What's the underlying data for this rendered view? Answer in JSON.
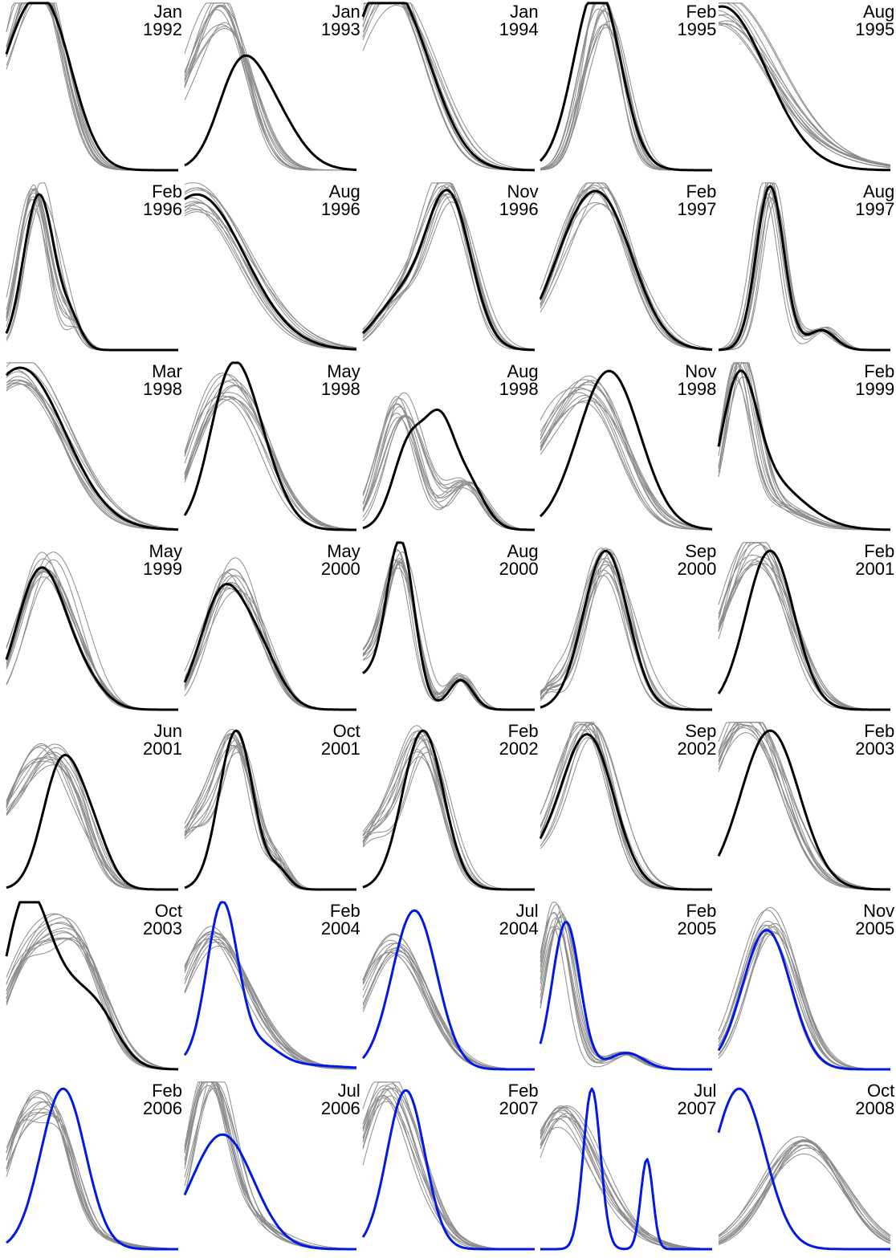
{
  "chart_data": {
    "type": "line",
    "layout": "small-multiples grid, 5 columns x 7 rows",
    "axes": "none shown",
    "grid": false,
    "colors": {
      "ensemble": "#8c8c8c",
      "observed": "#000000",
      "forecast": "#0019e6"
    },
    "panels": [
      {
        "month": "Jan",
        "year": "1992",
        "main": "#000000",
        "curves": [
          [
            0.25,
            0.15,
            0.85
          ],
          [
            -0.02,
            0.12,
            0.35
          ],
          [
            0.12,
            0.12,
            0.25
          ]
        ],
        "ensemble": [
          [
            0.23,
            0.14,
            0.93
          ],
          [
            -0.02,
            0.12,
            0.35
          ],
          [
            0.12,
            0.12,
            0.25
          ]
        ]
      },
      {
        "month": "Jan",
        "year": "1993",
        "main": "#000000",
        "curves": [
          [
            0.3,
            0.12,
            0.35
          ],
          [
            0.45,
            0.17,
            0.45
          ]
        ],
        "ensemble": [
          [
            0.24,
            0.15,
            0.9
          ],
          [
            -0.02,
            0.12,
            0.25
          ],
          [
            0.1,
            0.12,
            0.1
          ]
        ]
      },
      {
        "month": "Jan",
        "year": "1994",
        "main": "#000000",
        "curves": [
          [
            0.22,
            0.2,
            0.9
          ],
          [
            0.02,
            0.15,
            0.45
          ]
        ],
        "ensemble": [
          [
            0.23,
            0.2,
            0.92
          ],
          [
            0.02,
            0.15,
            0.45
          ]
        ]
      },
      {
        "month": "Feb",
        "year": "1995",
        "main": "#000000",
        "curves": [
          [
            0.28,
            0.12,
            0.12
          ],
          [
            0.33,
            0.14,
            0.72
          ],
          [
            0.35,
            0.12,
            0.3
          ]
        ],
        "ensemble": [
          [
            0.38,
            0.11,
            0.97
          ],
          [
            0.25,
            0.08,
            0.15
          ]
        ]
      },
      {
        "month": "Aug",
        "year": "1995",
        "main": "#000000",
        "curves": [
          [
            0.02,
            0.26,
            1.0
          ]
        ],
        "ensemble": [
          [
            0.0,
            0.28,
            0.9
          ],
          [
            0.35,
            0.35,
            0.15
          ]
        ]
      },
      {
        "month": "Feb",
        "year": "1996",
        "main": "#000000",
        "curves": [
          [
            0.19,
            0.09,
            0.95
          ],
          [
            0.38,
            0.06,
            0.15
          ]
        ],
        "ensemble": [
          [
            0.18,
            0.09,
            0.98
          ],
          [
            0.38,
            0.06,
            0.15
          ]
        ]
      },
      {
        "month": "Aug",
        "year": "1996",
        "main": "#000000",
        "curves": [
          [
            0.07,
            0.28,
            0.95
          ]
        ],
        "ensemble": [
          [
            0.06,
            0.29,
            0.95
          ]
        ]
      },
      {
        "month": "Nov",
        "year": "1996",
        "main": "#000000",
        "curves": [
          [
            0.22,
            0.15,
            0.3
          ],
          [
            0.5,
            0.13,
            0.92
          ]
        ],
        "ensemble": [
          [
            0.5,
            0.13,
            0.95
          ],
          [
            0.22,
            0.15,
            0.3
          ]
        ]
      },
      {
        "month": "Feb",
        "year": "1997",
        "main": "#000000",
        "curves": [
          [
            0.35,
            0.19,
            0.9
          ],
          [
            0.12,
            0.15,
            0.2
          ]
        ],
        "ensemble": [
          [
            0.35,
            0.19,
            0.92
          ],
          [
            0.12,
            0.15,
            0.2
          ]
        ]
      },
      {
        "month": "Aug",
        "year": "1997",
        "main": "#000000",
        "curves": [
          [
            0.3,
            0.08,
            1.0
          ],
          [
            0.6,
            0.08,
            0.12
          ]
        ],
        "ensemble": [
          [
            0.3,
            0.08,
            1.0
          ],
          [
            0.6,
            0.08,
            0.13
          ]
        ]
      },
      {
        "month": "Mar",
        "year": "1998",
        "main": "#000000",
        "curves": [
          [
            0.08,
            0.26,
            0.99
          ]
        ],
        "ensemble": [
          [
            0.08,
            0.26,
            0.99
          ]
        ]
      },
      {
        "month": "May",
        "year": "1998",
        "main": "#000000",
        "curves": [
          [
            0.25,
            0.12,
            0.7
          ],
          [
            0.4,
            0.14,
            0.5
          ]
        ],
        "ensemble": [
          [
            0.3,
            0.19,
            0.8
          ],
          [
            0.1,
            0.12,
            0.2
          ]
        ]
      },
      {
        "month": "Aug",
        "year": "1998",
        "main": "#000000",
        "curves": [
          [
            0.28,
            0.1,
            0.55
          ],
          [
            0.45,
            0.08,
            0.5
          ],
          [
            0.6,
            0.1,
            0.3
          ]
        ],
        "ensemble": [
          [
            0.22,
            0.12,
            0.78
          ],
          [
            0.6,
            0.1,
            0.28
          ]
        ]
      },
      {
        "month": "Nov",
        "year": "1998",
        "main": "#000000",
        "curves": [
          [
            0.4,
            0.18,
            0.97
          ]
        ],
        "ensemble": [
          [
            0.3,
            0.2,
            0.82
          ],
          [
            0.0,
            0.15,
            0.3
          ]
        ]
      },
      {
        "month": "Feb",
        "year": "1999",
        "main": "#000000",
        "curves": [
          [
            0.12,
            0.1,
            0.7
          ],
          [
            0.25,
            0.22,
            0.32
          ]
        ],
        "ensemble": [
          [
            0.12,
            0.09,
            0.88
          ],
          [
            0.25,
            0.2,
            0.18
          ]
        ]
      },
      {
        "month": "May",
        "year": "1999",
        "main": "#000000",
        "curves": [
          [
            0.2,
            0.14,
            0.85
          ],
          [
            0.45,
            0.12,
            0.15
          ]
        ],
        "ensemble": [
          [
            0.23,
            0.15,
            0.88
          ],
          [
            0.45,
            0.12,
            0.15
          ]
        ]
      },
      {
        "month": "May",
        "year": "2000",
        "main": "#000000",
        "curves": [
          [
            0.22,
            0.13,
            0.7
          ],
          [
            0.44,
            0.12,
            0.3
          ]
        ],
        "ensemble": [
          [
            0.24,
            0.14,
            0.75
          ],
          [
            0.44,
            0.12,
            0.25
          ]
        ]
      },
      {
        "month": "Aug",
        "year": "2000",
        "main": "#000000",
        "curves": [
          [
            0.22,
            0.08,
            0.97
          ],
          [
            0.57,
            0.07,
            0.18
          ],
          [
            0.0,
            0.15,
            0.2
          ]
        ],
        "ensemble": [
          [
            0.22,
            0.09,
            0.85
          ],
          [
            0.57,
            0.07,
            0.2
          ],
          [
            0.0,
            0.15,
            0.3
          ]
        ]
      },
      {
        "month": "Sep",
        "year": "2000",
        "main": "#000000",
        "curves": [
          [
            0.38,
            0.13,
            0.97
          ]
        ],
        "ensemble": [
          [
            0.38,
            0.14,
            0.92
          ],
          [
            0.05,
            0.06,
            0.1
          ]
        ]
      },
      {
        "month": "Feb",
        "year": "2001",
        "main": "#000000",
        "curves": [
          [
            0.3,
            0.14,
            0.97
          ]
        ],
        "ensemble": [
          [
            0.3,
            0.16,
            0.7
          ],
          [
            0.1,
            0.15,
            0.5
          ]
        ]
      },
      {
        "month": "Jun",
        "year": "2001",
        "main": "#000000",
        "curves": [
          [
            0.32,
            0.11,
            0.75
          ],
          [
            0.5,
            0.1,
            0.3
          ]
        ],
        "ensemble": [
          [
            0.22,
            0.14,
            0.7
          ],
          [
            0.42,
            0.12,
            0.3
          ],
          [
            0.0,
            0.12,
            0.3
          ]
        ]
      },
      {
        "month": "Oct",
        "year": "2001",
        "main": "#000000",
        "curves": [
          [
            0.3,
            0.1,
            0.97
          ],
          [
            0.55,
            0.06,
            0.1
          ]
        ],
        "ensemble": [
          [
            0.3,
            0.11,
            0.88
          ],
          [
            0.55,
            0.06,
            0.12
          ],
          [
            0.05,
            0.12,
            0.35
          ]
        ]
      },
      {
        "month": "Feb",
        "year": "2002",
        "main": "#000000",
        "curves": [
          [
            0.35,
            0.12,
            0.97
          ]
        ],
        "ensemble": [
          [
            0.35,
            0.13,
            0.9
          ],
          [
            0.05,
            0.12,
            0.3
          ]
        ]
      },
      {
        "month": "Sep",
        "year": "2002",
        "main": "#000000",
        "curves": [
          [
            0.28,
            0.15,
            0.92
          ],
          [
            0.0,
            0.15,
            0.15
          ]
        ],
        "ensemble": [
          [
            0.28,
            0.15,
            0.97
          ],
          [
            0.0,
            0.15,
            0.2
          ]
        ]
      },
      {
        "month": "Feb",
        "year": "2003",
        "main": "#000000",
        "curves": [
          [
            0.3,
            0.17,
            0.97
          ]
        ],
        "ensemble": [
          [
            0.2,
            0.2,
            0.88
          ],
          [
            0.0,
            0.2,
            0.3
          ]
        ]
      },
      {
        "month": "Oct",
        "year": "2003",
        "main": "#000000",
        "curves": [
          [
            0.1,
            0.12,
            0.8
          ],
          [
            0.3,
            0.18,
            0.5
          ],
          [
            0.55,
            0.12,
            0.2
          ]
        ],
        "ensemble": [
          [
            0.1,
            0.15,
            0.5
          ],
          [
            0.3,
            0.16,
            0.4
          ],
          [
            0.45,
            0.15,
            0.45
          ]
        ]
      },
      {
        "month": "Feb",
        "year": "2004",
        "main": "#0019e6",
        "curves": [
          [
            0.22,
            0.09,
            0.97
          ],
          [
            0.45,
            0.1,
            0.1
          ],
          [
            0.3,
            0.4,
            0.05
          ]
        ],
        "ensemble": [
          [
            0.15,
            0.18,
            0.75
          ],
          [
            0.4,
            0.2,
            0.15
          ]
        ]
      },
      {
        "month": "Jul",
        "year": "2004",
        "main": "#0019e6",
        "curves": [
          [
            0.3,
            0.13,
            0.97
          ]
        ],
        "ensemble": [
          [
            0.18,
            0.19,
            0.77
          ]
        ]
      },
      {
        "month": "Feb",
        "year": "2005",
        "main": "#0019e6",
        "curves": [
          [
            0.15,
            0.08,
            0.9
          ],
          [
            0.5,
            0.1,
            0.1
          ]
        ],
        "ensemble": [
          [
            0.1,
            0.09,
            0.97
          ],
          [
            0.5,
            0.1,
            0.1
          ]
        ]
      },
      {
        "month": "Nov",
        "year": "2005",
        "main": "#0019e6",
        "curves": [
          [
            0.28,
            0.14,
            0.85
          ]
        ],
        "ensemble": [
          [
            0.3,
            0.15,
            0.92
          ]
        ]
      },
      {
        "month": "Feb",
        "year": "2006",
        "main": "#0019e6",
        "curves": [
          [
            0.33,
            0.13,
            0.98
          ]
        ],
        "ensemble": [
          [
            0.1,
            0.12,
            0.55
          ],
          [
            0.3,
            0.1,
            0.5
          ],
          [
            0.2,
            0.25,
            0.2
          ]
        ]
      },
      {
        "month": "Jul",
        "year": "2006",
        "main": "#0019e6",
        "curves": [
          [
            0.22,
            0.18,
            0.7
          ]
        ],
        "ensemble": [
          [
            0.15,
            0.12,
            0.92
          ],
          [
            0.3,
            0.2,
            0.2
          ]
        ]
      },
      {
        "month": "Feb",
        "year": "2007",
        "main": "#0019e6",
        "curves": [
          [
            0.25,
            0.11,
            0.97
          ]
        ],
        "ensemble": [
          [
            0.12,
            0.15,
            0.88
          ],
          [
            0.3,
            0.15,
            0.25
          ]
        ]
      },
      {
        "month": "Jul",
        "year": "2007",
        "main": "#0019e6",
        "curves": [
          [
            0.3,
            0.05,
            0.98
          ],
          [
            0.62,
            0.035,
            0.55
          ]
        ],
        "ensemble": [
          [
            0.1,
            0.18,
            0.75
          ],
          [
            0.35,
            0.2,
            0.2
          ]
        ]
      },
      {
        "month": "Oct",
        "year": "2008",
        "main": "#0019e6",
        "curves": [
          [
            0.12,
            0.15,
            0.98
          ]
        ],
        "ensemble": [
          [
            0.5,
            0.22,
            0.65
          ]
        ]
      }
    ]
  }
}
